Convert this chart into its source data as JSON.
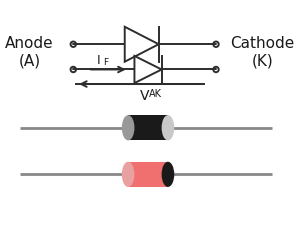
{
  "bg_color": "#ffffff",
  "line_color": "#2d2d2d",
  "text_color": "#1a1a1a",
  "anode_label": "Anode\n(A)",
  "cathode_label": "Cathode\n(K)",
  "if_label": "I",
  "if_sub": "F",
  "vak_label": "V",
  "vak_sub": "AK",
  "body1_color": "#1a1a1a",
  "body1_stripe_color": "#c8c8c8",
  "body1_cap_color": "#999999",
  "body2_color": "#f07070",
  "body2_stripe_color": "#1a1a1a",
  "body2_cap_color": "#e8a0a0",
  "wire_color": "#888888",
  "figw": 3.0,
  "figh": 2.38,
  "dpi": 100
}
